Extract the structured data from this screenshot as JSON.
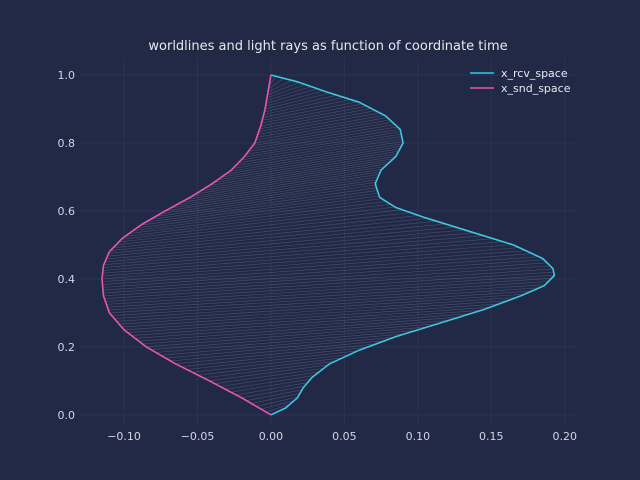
{
  "chart_data": {
    "type": "line",
    "title": "worldlines and light rays as function of coordinate time",
    "xlabel": "",
    "ylabel": "",
    "xlim": [
      -0.13,
      0.207
    ],
    "ylim": [
      -0.03,
      1.05
    ],
    "xticks": [
      -0.1,
      -0.05,
      0.0,
      0.05,
      0.1,
      0.15,
      0.2
    ],
    "xtick_labels": [
      "−0.10",
      "−0.05",
      "0.00",
      "0.05",
      "0.10",
      "0.15",
      "0.20"
    ],
    "yticks": [
      0.0,
      0.2,
      0.4,
      0.6,
      0.8,
      1.0
    ],
    "ytick_labels": [
      "0.0",
      "0.2",
      "0.4",
      "0.6",
      "0.8",
      "1.0"
    ],
    "grid": true,
    "legend_position": "top-right",
    "background": "#212946",
    "series": [
      {
        "name": "x_rcv_space",
        "color": "#3EC6E0",
        "points": [
          [
            0.0,
            0.0
          ],
          [
            0.01,
            0.02
          ],
          [
            0.018,
            0.05
          ],
          [
            0.022,
            0.08
          ],
          [
            0.028,
            0.11
          ],
          [
            0.04,
            0.15
          ],
          [
            0.06,
            0.19
          ],
          [
            0.085,
            0.23
          ],
          [
            0.115,
            0.27
          ],
          [
            0.145,
            0.31
          ],
          [
            0.17,
            0.35
          ],
          [
            0.186,
            0.38
          ],
          [
            0.193,
            0.41
          ],
          [
            0.192,
            0.43
          ],
          [
            0.185,
            0.46
          ],
          [
            0.165,
            0.5
          ],
          [
            0.135,
            0.54
          ],
          [
            0.105,
            0.58
          ],
          [
            0.085,
            0.61
          ],
          [
            0.074,
            0.64
          ],
          [
            0.071,
            0.68
          ],
          [
            0.075,
            0.72
          ],
          [
            0.085,
            0.76
          ],
          [
            0.09,
            0.8
          ],
          [
            0.088,
            0.84
          ],
          [
            0.078,
            0.88
          ],
          [
            0.06,
            0.92
          ],
          [
            0.038,
            0.95
          ],
          [
            0.018,
            0.98
          ],
          [
            0.0,
            1.0
          ]
        ]
      },
      {
        "name": "x_snd_space",
        "color": "#E855B2",
        "points": [
          [
            0.0,
            0.0
          ],
          [
            -0.02,
            0.05
          ],
          [
            -0.042,
            0.1
          ],
          [
            -0.065,
            0.15
          ],
          [
            -0.085,
            0.2
          ],
          [
            -0.1,
            0.25
          ],
          [
            -0.11,
            0.3
          ],
          [
            -0.114,
            0.35
          ],
          [
            -0.115,
            0.4
          ],
          [
            -0.114,
            0.44
          ],
          [
            -0.11,
            0.48
          ],
          [
            -0.101,
            0.52
          ],
          [
            -0.088,
            0.56
          ],
          [
            -0.072,
            0.6
          ],
          [
            -0.055,
            0.64
          ],
          [
            -0.04,
            0.68
          ],
          [
            -0.027,
            0.72
          ],
          [
            -0.018,
            0.76
          ],
          [
            -0.011,
            0.8
          ],
          [
            -0.007,
            0.85
          ],
          [
            -0.004,
            0.9
          ],
          [
            -0.002,
            0.95
          ],
          [
            0.0,
            1.0
          ]
        ]
      }
    ],
    "light_rays": {
      "count": 120,
      "color": "#9A9CB0"
    }
  }
}
